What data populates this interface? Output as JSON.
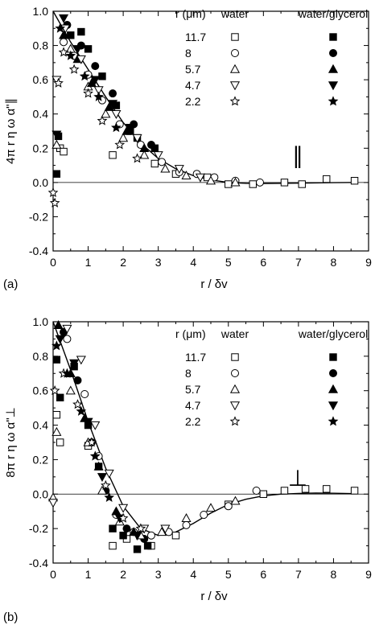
{
  "chart_data": [
    {
      "type": "scatter",
      "panel_label": "(a)",
      "ylabel": "4π r η ω α\"∥",
      "xlabel": "r / δv",
      "xlim": [
        0,
        9
      ],
      "ylim": [
        -0.4,
        1.0
      ],
      "x_ticks": [
        "0",
        "1",
        "2",
        "3",
        "4",
        "5",
        "6",
        "7",
        "8",
        "9"
      ],
      "y_ticks": [
        "-0.4",
        "-0.2",
        "0.0",
        "0.2",
        "0.4",
        "0.6",
        "0.8",
        "1.0"
      ],
      "annotation": "∥",
      "legend": {
        "placement": "top-right",
        "header": [
          "r (μm)",
          "water",
          "water/glycerol"
        ],
        "entries": [
          {
            "r": "11.7",
            "shape": "square"
          },
          {
            "r": "8",
            "shape": "circle"
          },
          {
            "r": "5.7",
            "shape": "triangle-up"
          },
          {
            "r": "4.7",
            "shape": "triangle-down"
          },
          {
            "r": "2.2",
            "shape": "star"
          }
        ]
      },
      "fit_curve": [
        [
          0,
          1.0
        ],
        [
          0.5,
          0.82
        ],
        [
          1,
          0.66
        ],
        [
          1.5,
          0.5
        ],
        [
          2,
          0.35
        ],
        [
          2.5,
          0.23
        ],
        [
          3,
          0.14
        ],
        [
          3.5,
          0.08
        ],
        [
          4,
          0.04
        ],
        [
          4.5,
          0.015
        ],
        [
          5,
          0.0
        ],
        [
          5.5,
          -0.005
        ],
        [
          6,
          -0.006
        ],
        [
          7,
          -0.004
        ],
        [
          8,
          -0.001
        ],
        [
          8.6,
          0.0
        ]
      ],
      "series": [
        {
          "name": "11.7 water",
          "shape": "square",
          "filled": false,
          "points": [
            [
              0.2,
              0.2
            ],
            [
              0.3,
              0.18
            ],
            [
              1.7,
              0.16
            ],
            [
              2.9,
              0.11
            ],
            [
              3.5,
              0.05
            ],
            [
              4.4,
              0.03
            ],
            [
              5.0,
              -0.01
            ],
            [
              5.7,
              -0.01
            ],
            [
              6.6,
              0.0
            ],
            [
              7.1,
              -0.01
            ],
            [
              7.8,
              0.02
            ],
            [
              8.6,
              0.01
            ]
          ]
        },
        {
          "name": "11.7 water/glycerol",
          "shape": "square",
          "filled": true,
          "points": [
            [
              0.1,
              0.05
            ],
            [
              0.15,
              0.27
            ],
            [
              0.5,
              0.86
            ],
            [
              0.8,
              0.88
            ],
            [
              1.0,
              0.78
            ],
            [
              1.4,
              0.62
            ],
            [
              1.8,
              0.45
            ],
            [
              2.2,
              0.3
            ],
            [
              2.4,
              0.26
            ],
            [
              2.9,
              0.2
            ]
          ]
        },
        {
          "name": "8 water",
          "shape": "circle",
          "filled": false,
          "points": [
            [
              0.3,
              0.82
            ],
            [
              0.6,
              0.74
            ],
            [
              1.0,
              0.63
            ],
            [
              1.4,
              0.48
            ],
            [
              1.9,
              0.34
            ],
            [
              2.5,
              0.22
            ],
            [
              3.1,
              0.12
            ],
            [
              3.6,
              0.06
            ],
            [
              4.1,
              0.05
            ],
            [
              4.6,
              0.03
            ],
            [
              5.2,
              0.01
            ],
            [
              5.9,
              0.0
            ]
          ]
        },
        {
          "name": "8 water/glycerol",
          "shape": "circle",
          "filled": true,
          "points": [
            [
              0.4,
              0.92
            ],
            [
              0.8,
              0.8
            ],
            [
              1.2,
              0.68
            ],
            [
              1.7,
              0.52
            ],
            [
              2.3,
              0.34
            ],
            [
              2.8,
              0.22
            ]
          ]
        },
        {
          "name": "5.7 water",
          "shape": "triangle-up",
          "filled": false,
          "points": [
            [
              0.1,
              0.22
            ],
            [
              0.5,
              0.78
            ],
            [
              1.0,
              0.56
            ],
            [
              1.5,
              0.4
            ],
            [
              2.0,
              0.26
            ],
            [
              2.6,
              0.16
            ],
            [
              3.2,
              0.08
            ],
            [
              3.8,
              0.04
            ],
            [
              4.5,
              0.01
            ],
            [
              5.2,
              0.0
            ]
          ]
        },
        {
          "name": "5.7 water/glycerol",
          "shape": "triangle-up",
          "filled": true,
          "points": [
            [
              0.3,
              0.86
            ],
            [
              0.7,
              0.72
            ],
            [
              1.1,
              0.58
            ],
            [
              1.6,
              0.44
            ],
            [
              2.1,
              0.3
            ],
            [
              2.6,
              0.2
            ]
          ]
        },
        {
          "name": "4.7 water",
          "shape": "triangle-down",
          "filled": false,
          "points": [
            [
              0.1,
              0.6
            ],
            [
              0.35,
              0.9
            ],
            [
              0.8,
              0.72
            ],
            [
              1.3,
              0.54
            ],
            [
              1.8,
              0.4
            ],
            [
              2.4,
              0.26
            ],
            [
              3.0,
              0.16
            ],
            [
              3.6,
              0.08
            ],
            [
              4.2,
              0.03
            ]
          ]
        },
        {
          "name": "4.7 water/glycerol",
          "shape": "triangle-down",
          "filled": true,
          "points": [
            [
              0.1,
              0.28
            ],
            [
              0.3,
              0.96
            ],
            [
              0.7,
              0.78
            ],
            [
              1.2,
              0.6
            ],
            [
              1.7,
              0.46
            ],
            [
              2.2,
              0.32
            ]
          ]
        },
        {
          "name": "2.2 water",
          "shape": "star",
          "filled": false,
          "points": [
            [
              0.0,
              -0.06
            ],
            [
              0.05,
              -0.12
            ],
            [
              0.15,
              0.58
            ],
            [
              0.3,
              0.76
            ],
            [
              0.6,
              0.66
            ],
            [
              1.0,
              0.52
            ],
            [
              1.4,
              0.36
            ],
            [
              1.9,
              0.22
            ],
            [
              2.4,
              0.14
            ]
          ]
        },
        {
          "name": "2.2 water/glycerol",
          "shape": "star",
          "filled": true,
          "points": [
            [
              0.2,
              0.9
            ],
            [
              0.5,
              0.74
            ],
            [
              0.9,
              0.62
            ],
            [
              1.3,
              0.5
            ],
            [
              1.8,
              0.32
            ]
          ]
        }
      ]
    },
    {
      "type": "scatter",
      "panel_label": "(b)",
      "ylabel": "8π r η ω α\"⊥",
      "xlabel": "r / δv",
      "xlim": [
        0,
        9
      ],
      "ylim": [
        -0.4,
        1.0
      ],
      "x_ticks": [
        "0",
        "1",
        "2",
        "3",
        "4",
        "5",
        "6",
        "7",
        "8",
        "9"
      ],
      "y_ticks": [
        "-0.4",
        "-0.2",
        "0.0",
        "0.2",
        "0.4",
        "0.6",
        "0.8",
        "1.0"
      ],
      "annotation": "⊥",
      "legend": {
        "placement": "top-right",
        "header": [
          "r (μm)",
          "water",
          "water/glycerol"
        ],
        "entries": [
          {
            "r": "11.7",
            "shape": "square"
          },
          {
            "r": "8",
            "shape": "circle"
          },
          {
            "r": "5.7",
            "shape": "triangle-up"
          },
          {
            "r": "4.7",
            "shape": "triangle-down"
          },
          {
            "r": "2.2",
            "shape": "star"
          }
        ]
      },
      "fit_curve": [
        [
          0,
          1.0
        ],
        [
          0.5,
          0.72
        ],
        [
          1,
          0.42
        ],
        [
          1.5,
          0.15
        ],
        [
          2,
          -0.07
        ],
        [
          2.5,
          -0.2
        ],
        [
          3,
          -0.24
        ],
        [
          3.5,
          -0.22
        ],
        [
          4,
          -0.17
        ],
        [
          4.5,
          -0.11
        ],
        [
          5,
          -0.06
        ],
        [
          5.5,
          -0.03
        ],
        [
          6,
          -0.01
        ],
        [
          6.5,
          0.0
        ],
        [
          7,
          0.004
        ],
        [
          7.5,
          0.006
        ],
        [
          8,
          0.005
        ],
        [
          8.6,
          0.003
        ]
      ],
      "series": [
        {
          "name": "11.7 water",
          "shape": "square",
          "filled": false,
          "points": [
            [
              0.1,
              0.46
            ],
            [
              0.2,
              0.3
            ],
            [
              1.0,
              0.28
            ],
            [
              1.7,
              -0.3
            ],
            [
              2.1,
              -0.26
            ],
            [
              2.8,
              -0.3
            ],
            [
              3.5,
              -0.24
            ],
            [
              5.0,
              -0.06
            ],
            [
              6.0,
              0.0
            ],
            [
              6.6,
              0.02
            ],
            [
              7.2,
              0.03
            ],
            [
              7.8,
              0.03
            ],
            [
              8.6,
              0.02
            ]
          ]
        },
        {
          "name": "11.7 water/glycerol",
          "shape": "square",
          "filled": true,
          "points": [
            [
              0.1,
              0.78
            ],
            [
              0.2,
              0.56
            ],
            [
              0.6,
              0.74
            ],
            [
              1.0,
              0.4
            ],
            [
              1.3,
              0.16
            ],
            [
              1.7,
              -0.2
            ],
            [
              2.0,
              -0.24
            ],
            [
              2.4,
              -0.32
            ],
            [
              2.7,
              -0.3
            ]
          ]
        },
        {
          "name": "8 water",
          "shape": "circle",
          "filled": false,
          "points": [
            [
              0.4,
              0.9
            ],
            [
              0.9,
              0.58
            ],
            [
              1.3,
              0.22
            ],
            [
              1.8,
              -0.12
            ],
            [
              2.3,
              -0.22
            ],
            [
              2.8,
              -0.24
            ],
            [
              3.3,
              -0.22
            ],
            [
              3.8,
              -0.18
            ],
            [
              4.3,
              -0.12
            ],
            [
              5.0,
              -0.07
            ],
            [
              5.8,
              0.02
            ]
          ]
        },
        {
          "name": "8 water/glycerol",
          "shape": "circle",
          "filled": true,
          "points": [
            [
              0.3,
              0.94
            ],
            [
              0.7,
              0.66
            ],
            [
              1.1,
              0.3
            ],
            [
              1.5,
              0.02
            ],
            [
              2.1,
              -0.2
            ],
            [
              2.6,
              -0.26
            ]
          ]
        },
        {
          "name": "5.7 water",
          "shape": "triangle-up",
          "filled": false,
          "points": [
            [
              0.0,
              -0.02
            ],
            [
              0.1,
              0.36
            ],
            [
              0.5,
              0.6
            ],
            [
              1.0,
              0.3
            ],
            [
              1.4,
              0.02
            ],
            [
              1.9,
              -0.16
            ],
            [
              2.5,
              -0.24
            ],
            [
              3.1,
              -0.22
            ],
            [
              3.8,
              -0.14
            ],
            [
              4.5,
              -0.08
            ],
            [
              5.2,
              -0.04
            ]
          ]
        },
        {
          "name": "5.7 water/glycerol",
          "shape": "triangle-up",
          "filled": true,
          "points": [
            [
              0.15,
              0.98
            ],
            [
              0.5,
              0.7
            ],
            [
              0.9,
              0.44
            ],
            [
              1.3,
              0.16
            ],
            [
              1.8,
              -0.1
            ],
            [
              2.3,
              -0.22
            ]
          ]
        },
        {
          "name": "4.7 water",
          "shape": "triangle-down",
          "filled": false,
          "points": [
            [
              0.0,
              -0.05
            ],
            [
              0.4,
              0.96
            ],
            [
              0.8,
              0.78
            ],
            [
              1.2,
              0.4
            ],
            [
              1.6,
              0.12
            ],
            [
              2.0,
              -0.08
            ],
            [
              2.6,
              -0.2
            ],
            [
              3.2,
              -0.2
            ]
          ]
        },
        {
          "name": "4.7 water/glycerol",
          "shape": "triangle-down",
          "filled": true,
          "points": [
            [
              0.2,
              0.9
            ],
            [
              0.6,
              0.76
            ],
            [
              1.0,
              0.42
            ],
            [
              1.4,
              0.1
            ],
            [
              1.9,
              -0.14
            ],
            [
              2.4,
              -0.24
            ]
          ]
        },
        {
          "name": "2.2 water",
          "shape": "star",
          "filled": false,
          "points": [
            [
              0.05,
              0.6
            ],
            [
              0.3,
              0.7
            ],
            [
              0.7,
              0.52
            ],
            [
              1.1,
              0.3
            ],
            [
              1.5,
              0.05
            ],
            [
              2.0,
              -0.14
            ],
            [
              2.5,
              -0.2
            ]
          ]
        },
        {
          "name": "2.2 water/glycerol",
          "shape": "star",
          "filled": true,
          "points": [
            [
              0.1,
              0.86
            ],
            [
              0.4,
              0.7
            ],
            [
              0.8,
              0.48
            ],
            [
              1.2,
              0.22
            ],
            [
              1.6,
              -0.02
            ]
          ]
        }
      ]
    }
  ]
}
